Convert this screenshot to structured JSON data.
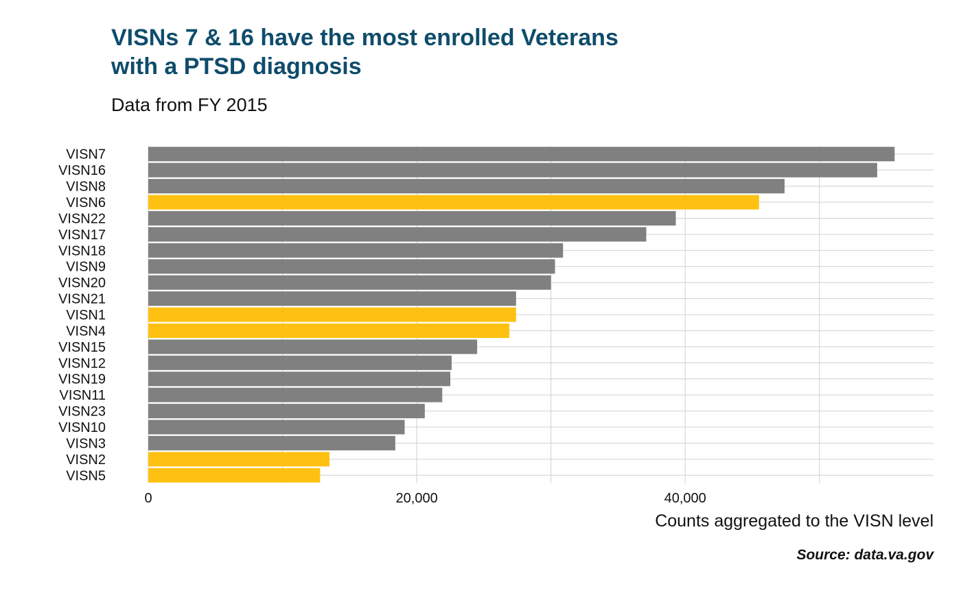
{
  "title_lines": [
    "VISNs 7 & 16 have the most enrolled Veterans",
    "with a PTSD diagnosis"
  ],
  "subtitle": "Data from FY 2015",
  "caption": "Source: data.va.gov",
  "colors": {
    "title": "#0f4c6b",
    "default_bar": "#808080",
    "highlight_bar": "#ffc111",
    "grid": "#d0d0d0"
  },
  "chart_data": {
    "type": "bar",
    "orientation": "horizontal",
    "categories": [
      "VISN7",
      "VISN16",
      "VISN8",
      "VISN6",
      "VISN22",
      "VISN17",
      "VISN18",
      "VISN9",
      "VISN20",
      "VISN21",
      "VISN1",
      "VISN4",
      "VISN15",
      "VISN12",
      "VISN19",
      "VISN11",
      "VISN23",
      "VISN10",
      "VISN3",
      "VISN2",
      "VISN5"
    ],
    "values": [
      55600,
      54300,
      47400,
      45500,
      39300,
      37100,
      30900,
      30300,
      30000,
      27400,
      27400,
      26900,
      24500,
      22600,
      22500,
      21900,
      20600,
      19100,
      18400,
      13500,
      12800
    ],
    "highlighted": [
      "VISN6",
      "VISN1",
      "VISN4",
      "VISN2",
      "VISN5"
    ],
    "xlabel": "Counts aggregated to the VISN level",
    "ylabel": "",
    "xlim": [
      0,
      58500
    ],
    "x_ticks": [
      0,
      20000,
      40000
    ],
    "x_tick_labels": [
      "0",
      "20,000",
      "40,000"
    ],
    "grid": true
  }
}
